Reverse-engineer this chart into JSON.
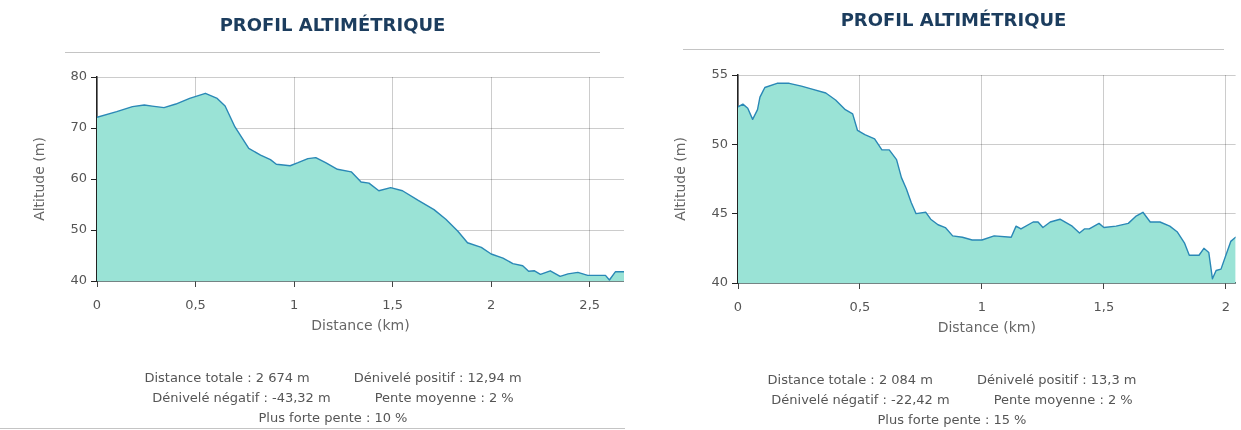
{
  "chart_data": [
    {
      "type": "area",
      "title": "PROFIL ALTIMÉTRIQUE",
      "xlabel": "Distance (km)",
      "ylabel": "Altitude (m)",
      "x": [
        0,
        0.1,
        0.18,
        0.24,
        0.28,
        0.34,
        0.4,
        0.47,
        0.55,
        0.61,
        0.65,
        0.7,
        0.77,
        0.83,
        0.88,
        0.91,
        0.98,
        1.02,
        1.07,
        1.11,
        1.16,
        1.22,
        1.29,
        1.34,
        1.38,
        1.43,
        1.49,
        1.55,
        1.63,
        1.71,
        1.77,
        1.83,
        1.88,
        1.95,
        2,
        2.06,
        2.11,
        2.16,
        2.19,
        2.22,
        2.25,
        2.3,
        2.35,
        2.39,
        2.44,
        2.49,
        2.58,
        2.6,
        2.63,
        2.674
      ],
      "values": [
        72.1,
        73.2,
        74.2,
        74.5,
        74.3,
        74.0,
        74.7,
        75.8,
        76.8,
        75.8,
        74.3,
        70.2,
        66.0,
        64.7,
        63.8,
        62.9,
        62.6,
        63.2,
        64.0,
        64.2,
        63.2,
        61.9,
        61.4,
        59.4,
        59.2,
        57.7,
        58.3,
        57.7,
        55.8,
        54.0,
        52.1,
        49.8,
        47.5,
        46.6,
        45.3,
        44.5,
        43.4,
        43.0,
        41.9,
        42.0,
        41.3,
        42.0,
        40.9,
        41.4,
        41.7,
        41.1,
        41.1,
        40.2,
        41.8,
        41.8
      ],
      "color": "#9ae3d6",
      "xlim": [
        0,
        2.674
      ],
      "ylim": [
        40,
        80
      ],
      "xticks": [
        0,
        {
          "value": 0.5,
          "label": "0,5"
        },
        1,
        {
          "value": 1.5,
          "label": "1,5"
        },
        2,
        {
          "value": 2.5,
          "label": "2,5"
        }
      ],
      "yticks": [
        40,
        50,
        60,
        70,
        80
      ],
      "grid": true,
      "annotations": [
        "Distance totale : 2 674 m",
        "Dénivelé positif : 12,94 m",
        "Dénivelé négatif : -43,32 m",
        "Pente moyenne : 2 %",
        "Plus forte pente : 10 %"
      ]
    },
    {
      "type": "area",
      "title": "PROFIL ALTIMÉTRIQUE",
      "xlabel": "Distance (km)",
      "ylabel": "Altitude (m)",
      "x": [
        0,
        0.02,
        0.04,
        0.06,
        0.08,
        0.09,
        0.11,
        0.16,
        0.21,
        0.26,
        0.3,
        0.36,
        0.4,
        0.44,
        0.47,
        0.49,
        0.52,
        0.56,
        0.59,
        0.62,
        0.65,
        0.67,
        0.69,
        0.71,
        0.73,
        0.77,
        0.79,
        0.82,
        0.85,
        0.88,
        0.92,
        0.96,
        1,
        1.05,
        1.12,
        1.14,
        1.16,
        1.21,
        1.23,
        1.25,
        1.28,
        1.32,
        1.37,
        1.4,
        1.42,
        1.44,
        1.48,
        1.5,
        1.55,
        1.6,
        1.63,
        1.66,
        1.69,
        1.73,
        1.77,
        1.8,
        1.83,
        1.85,
        1.89,
        1.91,
        1.93,
        1.945,
        1.96,
        1.98,
        2.02,
        2.04
      ],
      "values": [
        52.7,
        52.9,
        52.6,
        51.8,
        52.5,
        53.4,
        54.1,
        54.4,
        54.4,
        54.2,
        54.0,
        53.7,
        53.2,
        52.5,
        52.2,
        51.0,
        50.7,
        50.4,
        49.6,
        49.6,
        48.9,
        47.6,
        46.8,
        45.8,
        45.0,
        45.1,
        44.6,
        44.2,
        44.0,
        43.4,
        43.3,
        43.1,
        43.1,
        43.4,
        43.3,
        44.1,
        43.9,
        44.4,
        44.4,
        44.0,
        44.4,
        44.6,
        44.1,
        43.6,
        43.9,
        43.9,
        44.3,
        44.0,
        44.1,
        44.3,
        44.8,
        45.1,
        44.4,
        44.4,
        44.1,
        43.7,
        42.9,
        42.0,
        42.0,
        42.5,
        42.2,
        40.3,
        40.9,
        41.0,
        43.0,
        43.3
      ],
      "color": "#9ae3d6",
      "xlim": [
        0,
        2.04
      ],
      "ylim": [
        40,
        55
      ],
      "xticks": [
        0,
        {
          "value": 0.5,
          "label": "0,5"
        },
        1,
        {
          "value": 1.5,
          "label": "1,5"
        },
        2
      ],
      "yticks": [
        40,
        45,
        50,
        55
      ],
      "grid": true,
      "annotations": [
        "Distance totale : 2 084 m",
        "Dénivelé positif : 13,3 m",
        "Dénivelé négatif : -22,42 m",
        "Pente moyenne : 2 %",
        "Plus forte pente : 15 %"
      ]
    }
  ]
}
